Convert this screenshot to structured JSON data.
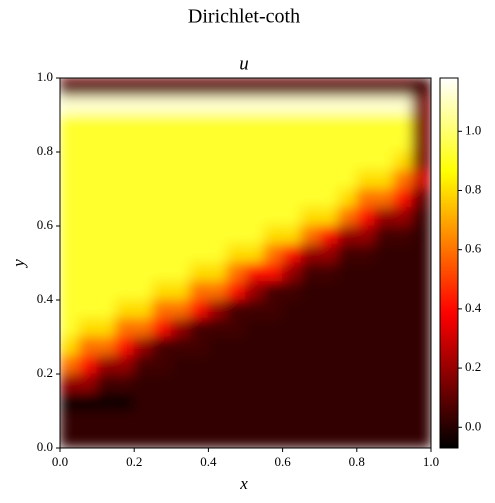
{
  "chart_data": {
    "type": "heatmap",
    "title": "Dirichlet-coth",
    "subtitle": "u",
    "xlabel": "x",
    "ylabel": "y",
    "cmap": "hot",
    "clim": [
      -0.07,
      1.18
    ],
    "xlim": [
      0,
      1
    ],
    "ylim": [
      0,
      1
    ],
    "xticks": [
      {
        "value": 0,
        "label": "0.0"
      },
      0.2,
      0.4,
      0.6,
      0.8,
      {
        "value": 1,
        "label": "1.0"
      }
    ],
    "yticks": [
      {
        "value": 0,
        "label": "0.0"
      },
      0.2,
      0.4,
      0.6,
      0.8,
      {
        "value": 1,
        "label": "1.0"
      }
    ],
    "cticks": [
      {
        "value": 0,
        "label": "0.0"
      },
      0.2,
      0.4,
      0.6,
      0.8,
      {
        "value": 1,
        "label": "1.0"
      }
    ],
    "values": [
      [
        0.1,
        0.1,
        0.1,
        0.1,
        0.1,
        0.1,
        0.1,
        0.1,
        0.1,
        0.1,
        0.1,
        0.1,
        0.1,
        0.1,
        0.1,
        0.1,
        0.1,
        0.1,
        0.1,
        0.05
      ],
      [
        1.12,
        1.12,
        1.12,
        1.12,
        1.12,
        1.12,
        1.12,
        1.12,
        1.12,
        1.12,
        1.12,
        1.12,
        1.12,
        1.12,
        1.12,
        1.12,
        1.12,
        1.12,
        1.12,
        0.15
      ],
      [
        0.92,
        0.92,
        0.92,
        0.92,
        0.92,
        0.92,
        0.92,
        0.92,
        0.92,
        0.92,
        0.92,
        0.92,
        0.92,
        0.92,
        0.92,
        0.92,
        0.92,
        0.92,
        0.92,
        0.15
      ],
      [
        0.92,
        0.92,
        0.92,
        0.92,
        0.92,
        0.92,
        0.92,
        0.92,
        0.92,
        0.92,
        0.92,
        0.92,
        0.92,
        0.92,
        0.92,
        0.92,
        0.92,
        0.92,
        0.92,
        0.15
      ],
      [
        0.92,
        0.92,
        0.92,
        0.92,
        0.92,
        0.92,
        0.92,
        0.92,
        0.92,
        0.92,
        0.92,
        0.92,
        0.92,
        0.92,
        0.92,
        0.92,
        0.92,
        0.92,
        0.8,
        0.15
      ],
      [
        0.92,
        0.92,
        0.92,
        0.92,
        0.92,
        0.92,
        0.92,
        0.92,
        0.92,
        0.92,
        0.92,
        0.92,
        0.92,
        0.92,
        0.92,
        0.92,
        0.8,
        0.8,
        0.6,
        0.3
      ],
      [
        0.92,
        0.92,
        0.92,
        0.92,
        0.92,
        0.92,
        0.92,
        0.92,
        0.92,
        0.92,
        0.92,
        0.92,
        0.92,
        0.92,
        0.92,
        0.8,
        0.6,
        0.6,
        0.4,
        0.1
      ],
      [
        0.92,
        0.92,
        0.92,
        0.92,
        0.92,
        0.92,
        0.92,
        0.92,
        0.92,
        0.92,
        0.92,
        0.92,
        0.92,
        0.8,
        0.8,
        0.6,
        0.4,
        0.2,
        0.2,
        0.03
      ],
      [
        0.92,
        0.92,
        0.92,
        0.92,
        0.92,
        0.92,
        0.92,
        0.92,
        0.92,
        0.92,
        0.92,
        0.8,
        0.8,
        0.6,
        0.4,
        0.2,
        0.2,
        0.05,
        0.05,
        0.02
      ],
      [
        0.92,
        0.92,
        0.92,
        0.92,
        0.92,
        0.92,
        0.92,
        0.92,
        0.92,
        0.8,
        0.8,
        0.6,
        0.4,
        0.2,
        0.2,
        0.05,
        0.05,
        0.02,
        0.02,
        0.02
      ],
      [
        0.92,
        0.92,
        0.92,
        0.92,
        0.92,
        0.92,
        0.92,
        0.8,
        0.8,
        0.6,
        0.4,
        0.4,
        0.2,
        0.05,
        0.05,
        0.02,
        0.02,
        0.02,
        0.02,
        0.02
      ],
      [
        0.92,
        0.92,
        0.92,
        0.92,
        0.92,
        0.8,
        0.8,
        0.6,
        0.6,
        0.4,
        0.2,
        0.05,
        0.05,
        0.02,
        0.02,
        0.02,
        0.02,
        0.02,
        0.02,
        0.02
      ],
      [
        0.92,
        0.92,
        0.92,
        0.8,
        0.8,
        0.6,
        0.6,
        0.4,
        0.2,
        0.05,
        0.05,
        0.05,
        0.02,
        0.02,
        0.02,
        0.02,
        0.02,
        0.02,
        0.02,
        0.02
      ],
      [
        0.92,
        0.8,
        0.8,
        0.6,
        0.6,
        0.4,
        0.2,
        0.05,
        0.05,
        0.05,
        0.02,
        0.02,
        0.02,
        0.02,
        0.02,
        0.02,
        0.02,
        0.02,
        0.02,
        0.02
      ],
      [
        0.8,
        0.6,
        0.6,
        0.4,
        0.2,
        0.05,
        0.05,
        0.05,
        0.02,
        0.02,
        0.02,
        0.02,
        0.02,
        0.02,
        0.02,
        0.02,
        0.02,
        0.02,
        0.02,
        0.02
      ],
      [
        0.6,
        0.4,
        0.2,
        0.2,
        0.05,
        0.05,
        0.02,
        0.02,
        0.02,
        0.02,
        0.02,
        0.02,
        0.02,
        0.02,
        0.02,
        0.02,
        0.02,
        0.02,
        0.02,
        0.02
      ],
      [
        0.2,
        0.2,
        0.05,
        0.05,
        0.02,
        0.02,
        0.02,
        0.02,
        0.02,
        0.02,
        0.02,
        0.02,
        0.02,
        0.02,
        0.02,
        0.02,
        0.02,
        0.02,
        0.02,
        0.02
      ],
      [
        -0.05,
        -0.05,
        -0.05,
        -0.05,
        0.02,
        0.02,
        0.02,
        0.02,
        0.02,
        0.02,
        0.02,
        0.02,
        0.02,
        0.02,
        0.02,
        0.02,
        0.02,
        0.02,
        0.02,
        0.02
      ],
      [
        0.02,
        0.02,
        0.02,
        0.02,
        0.02,
        0.02,
        0.02,
        0.02,
        0.02,
        0.02,
        0.02,
        0.02,
        0.02,
        0.02,
        0.02,
        0.02,
        0.02,
        0.02,
        0.02,
        0.02
      ],
      [
        0.02,
        0.02,
        0.02,
        0.02,
        0.02,
        0.02,
        0.02,
        0.02,
        0.02,
        0.02,
        0.02,
        0.02,
        0.02,
        0.02,
        0.02,
        0.02,
        0.02,
        0.02,
        0.02,
        0.02
      ]
    ]
  }
}
